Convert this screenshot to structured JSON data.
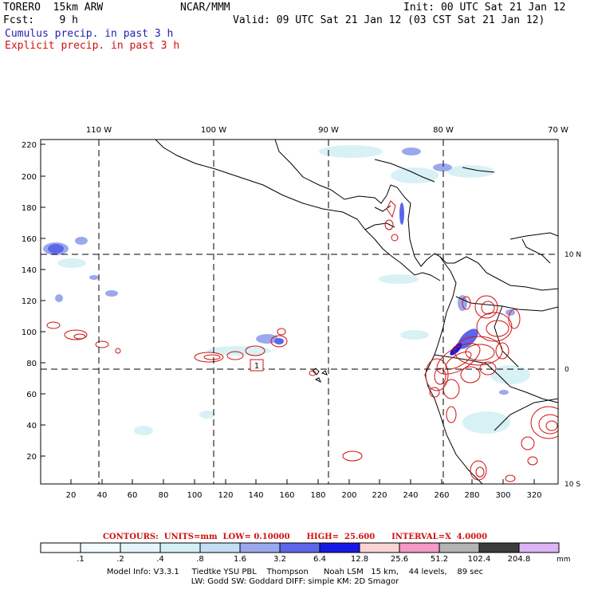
{
  "header": {
    "model": "TORERO  15km ARW",
    "org": "NCAR/MMM",
    "init": "Init: 00 UTC Sat 21 Jan 12",
    "fcst": "Fcst:    9 h",
    "valid": "Valid: 09 UTC Sat 21 Jan 12 (03 CST Sat 21 Jan 12)",
    "cumulus": "Cumulus precip. in past 3 h",
    "explicit": "Explicit precip. in past 3 h"
  },
  "map": {
    "lon_labels": [
      "110 W",
      "100 W",
      "90 W",
      "80 W",
      "70 W"
    ],
    "lat_labels": [
      "10 N",
      "0",
      "10 S"
    ],
    "y_ticks": [
      "220",
      "200",
      "180",
      "160",
      "140",
      "120",
      "100",
      "80",
      "60",
      "40",
      "20"
    ],
    "x_ticks": [
      "20",
      "40",
      "60",
      "80",
      "100",
      "120",
      "140",
      "160",
      "180",
      "200",
      "220",
      "240",
      "260",
      "280",
      "300",
      "320"
    ],
    "high_marker": "1"
  },
  "contours_line": "CONTOURS:  UNITS=mm  LOW= 0.10000      HIGH=  25.600      INTERVAL=X  4.0000",
  "colorbar": {
    "labels": [
      ".1",
      ".2",
      ".4",
      ".8",
      "1.6",
      "3.2",
      "6.4",
      "12.8",
      "25.6",
      "51.2",
      "102.4",
      "204.8"
    ],
    "unit": "mm",
    "colors": [
      "#ffffff",
      "#f2fbff",
      "#e4f6fb",
      "#d4f0f4",
      "#c4ddf4",
      "#9aa8ee",
      "#5c66ea",
      "#1818e6",
      "#fbd4d4",
      "#f49ac4",
      "#b4b4b4",
      "#3c3c3c",
      "#dcb4f4"
    ]
  },
  "footer": {
    "line1": "Model Info: V3.3.1     Tiedtke YSU PBL    Thompson      Noah LSM   15 km,    44 levels,    89 sec",
    "line2": "LW: Godd SW: Goddard DIFF: simple KM: 2D Smagor"
  }
}
